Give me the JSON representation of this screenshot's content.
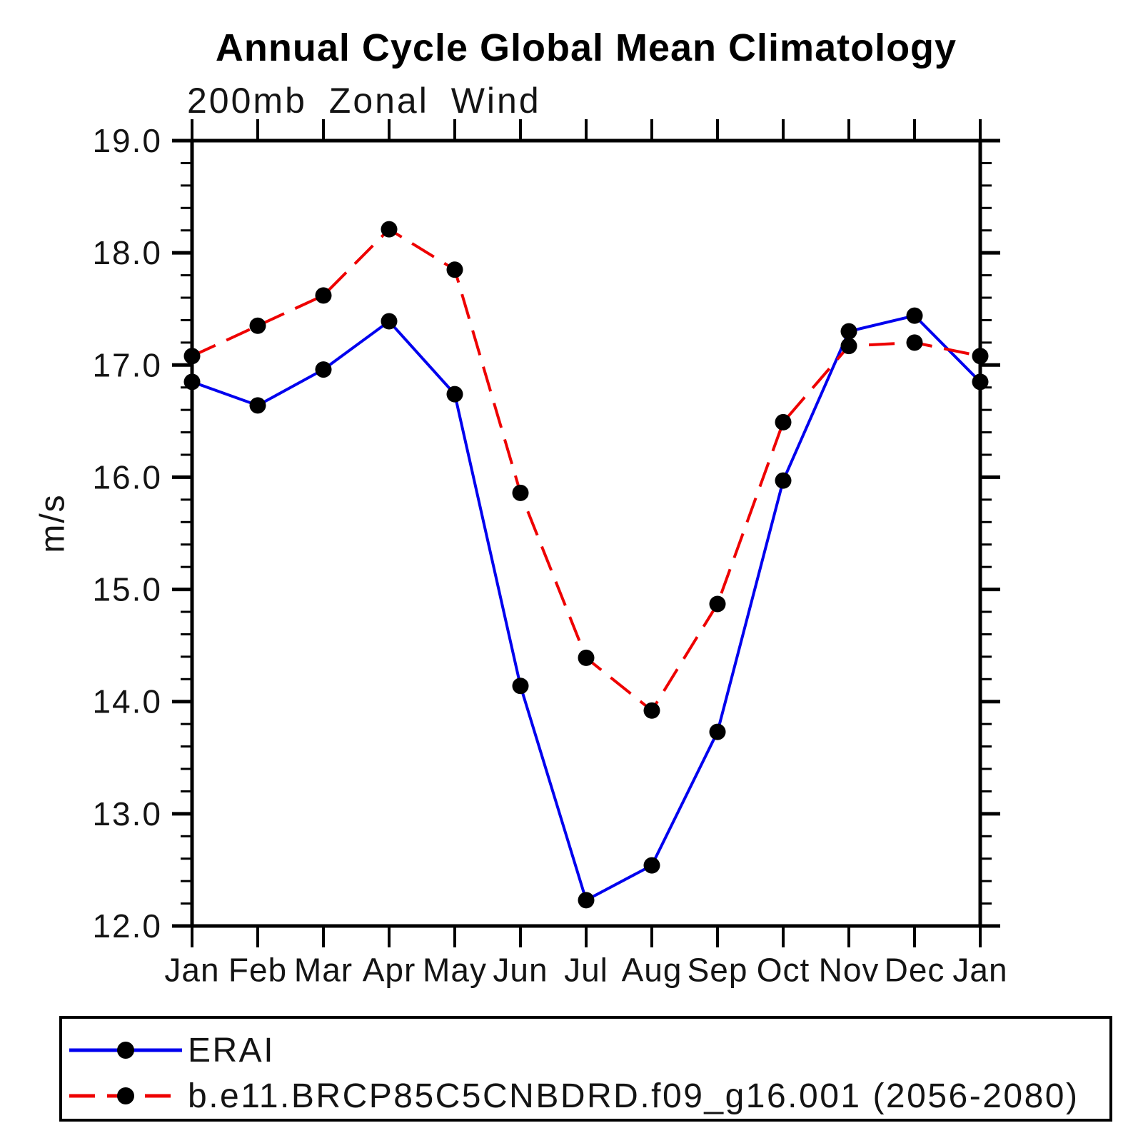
{
  "chart_data": {
    "type": "line",
    "title": "Annual Cycle Global Mean Climatology",
    "subtitle": "200mb Zonal Wind",
    "ylabel": "m/s",
    "ylim": [
      12.0,
      19.0
    ],
    "ytick_major_step": 1.0,
    "ytick_minor_step": 0.2,
    "ytick_values": [
      12.0,
      13.0,
      14.0,
      15.0,
      16.0,
      17.0,
      18.0,
      19.0
    ],
    "ytick_labels": [
      "12.0",
      "13.0",
      "14.0",
      "15.0",
      "16.0",
      "17.0",
      "18.0",
      "19.0"
    ],
    "categories": [
      "Jan",
      "Feb",
      "Mar",
      "Apr",
      "May",
      "Jun",
      "Jul",
      "Aug",
      "Sep",
      "Oct",
      "Nov",
      "Dec",
      "Jan"
    ],
    "series": [
      {
        "name": "ERAI",
        "color": "#0000ee",
        "style": "solid",
        "marker": "circle",
        "marker_color": "#000000",
        "values": [
          16.85,
          16.64,
          16.96,
          17.39,
          16.74,
          14.14,
          12.23,
          12.54,
          13.73,
          15.97,
          17.3,
          17.44,
          16.85
        ]
      },
      {
        "name": "b.e11.BRCP85C5CNBDRD.f09_g16.001 (2056-2080)",
        "color": "#ee0000",
        "style": "dashed",
        "marker": "circle",
        "marker_color": "#000000",
        "values": [
          17.08,
          17.35,
          17.62,
          18.21,
          17.85,
          15.86,
          14.39,
          13.92,
          14.87,
          16.49,
          17.17,
          17.2,
          17.08
        ]
      }
    ],
    "legend_position": "bottom",
    "grid": false,
    "frame": true,
    "axis_color": "#000000",
    "background_color": "#ffffff"
  }
}
